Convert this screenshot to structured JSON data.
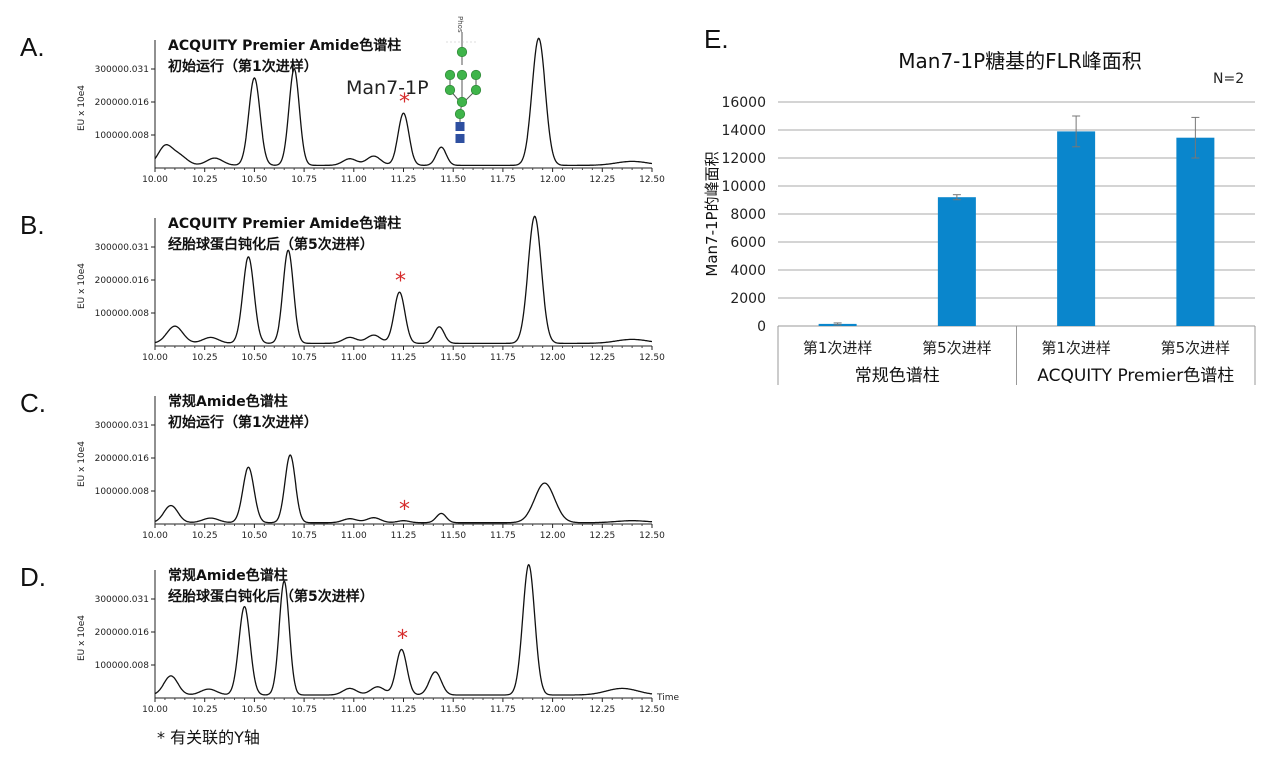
{
  "footnote": "* 有关联的Y轴",
  "chromatograms": {
    "x_axis": {
      "ticks": [
        "10.00",
        "10.25",
        "10.50",
        "10.75",
        "11.00",
        "11.25",
        "11.50",
        "11.75",
        "12.00",
        "12.25",
        "12.50"
      ],
      "time_label": "Time"
    },
    "y_axis": {
      "label": "EU x 10e4",
      "ticks": [
        "100000.008",
        "200000.016",
        "300000.031"
      ]
    },
    "glycan_label": "Man7-1P",
    "glycan_stub_label": "Phos",
    "asterisk": "*",
    "panels": [
      {
        "letter": "A.",
        "title_line1": "ACQUITY Premier Amide色谱柱",
        "title_line2": "初始运行（第1次进样）",
        "show_glycan": true,
        "show_time": false
      },
      {
        "letter": "B.",
        "title_line1": "ACQUITY Premier Amide色谱柱",
        "title_line2": "经胎球蛋白钝化后（第5次进样）",
        "show_glycan": false,
        "show_time": false
      },
      {
        "letter": "C.",
        "title_line1": "常规Amide色谱柱",
        "title_line2": "初始运行（第1次进样）",
        "show_glycan": false,
        "show_time": false
      },
      {
        "letter": "D.",
        "title_line1": "常规Amide色谱柱",
        "title_line2": "经胎球蛋白钝化后（第5次进样）",
        "show_glycan": false,
        "show_time": true
      }
    ]
  },
  "colors": {
    "bar": "#0a86cc",
    "asterisk": "#d62b2b",
    "glycan_green": "#3fb44a",
    "glycan_blue": "#2e4fa0",
    "trace": "#111111",
    "grid": "#aaaaaa"
  },
  "chart_data": [
    {
      "type": "line",
      "panel": "A.",
      "title": "ACQUITY Premier Amide色谱柱 初始运行（第1次进样）",
      "xlabel": "",
      "ylabel": "EU x 10e4",
      "xlim": [
        10.0,
        12.5
      ],
      "ylim": [
        0,
        400000
      ],
      "peaks": [
        {
          "x": 10.05,
          "y": 55000,
          "w": 0.035
        },
        {
          "x": 10.12,
          "y": 30000,
          "w": 0.04
        },
        {
          "x": 10.3,
          "y": 22000,
          "w": 0.04
        },
        {
          "x": 10.5,
          "y": 265000,
          "w": 0.028
        },
        {
          "x": 10.7,
          "y": 292000,
          "w": 0.026
        },
        {
          "x": 10.98,
          "y": 20000,
          "w": 0.035
        },
        {
          "x": 11.1,
          "y": 28000,
          "w": 0.035
        },
        {
          "x": 11.25,
          "y": 158000,
          "w": 0.027
        },
        {
          "x": 11.44,
          "y": 55000,
          "w": 0.025
        },
        {
          "x": 11.93,
          "y": 385000,
          "w": 0.033
        },
        {
          "x": 12.4,
          "y": 12000,
          "w": 0.08
        }
      ],
      "baseline": 8000,
      "marked_peak_x": 11.25
    },
    {
      "type": "line",
      "panel": "B.",
      "title": "ACQUITY Premier Amide色谱柱 经胎球蛋白钝化后（第5次进样）",
      "xlabel": "",
      "ylabel": "EU x 10e4",
      "xlim": [
        10.0,
        12.5
      ],
      "ylim": [
        0,
        400000
      ],
      "peaks": [
        {
          "x": 10.1,
          "y": 52000,
          "w": 0.04
        },
        {
          "x": 10.28,
          "y": 18000,
          "w": 0.04
        },
        {
          "x": 10.47,
          "y": 262000,
          "w": 0.028
        },
        {
          "x": 10.67,
          "y": 282000,
          "w": 0.026
        },
        {
          "x": 10.98,
          "y": 18000,
          "w": 0.035
        },
        {
          "x": 11.1,
          "y": 25000,
          "w": 0.035
        },
        {
          "x": 11.23,
          "y": 155000,
          "w": 0.027
        },
        {
          "x": 11.43,
          "y": 50000,
          "w": 0.025
        },
        {
          "x": 11.91,
          "y": 385000,
          "w": 0.033
        },
        {
          "x": 12.4,
          "y": 12000,
          "w": 0.08
        }
      ],
      "baseline": 8000,
      "marked_peak_x": 11.23
    },
    {
      "type": "line",
      "panel": "C.",
      "title": "常规Amide色谱柱 初始运行（第1次进样）",
      "xlabel": "",
      "ylabel": "EU x 10e4",
      "xlim": [
        10.0,
        12.5
      ],
      "ylim": [
        0,
        400000
      ],
      "peaks": [
        {
          "x": 10.08,
          "y": 52000,
          "w": 0.035
        },
        {
          "x": 10.28,
          "y": 14000,
          "w": 0.04
        },
        {
          "x": 10.47,
          "y": 168000,
          "w": 0.028
        },
        {
          "x": 10.68,
          "y": 205000,
          "w": 0.026
        },
        {
          "x": 10.98,
          "y": 12000,
          "w": 0.035
        },
        {
          "x": 11.1,
          "y": 15000,
          "w": 0.035
        },
        {
          "x": 11.25,
          "y": 6000,
          "w": 0.03
        },
        {
          "x": 11.44,
          "y": 28000,
          "w": 0.025
        },
        {
          "x": 11.96,
          "y": 120000,
          "w": 0.05
        },
        {
          "x": 12.4,
          "y": 6000,
          "w": 0.08
        }
      ],
      "baseline": 4000,
      "marked_peak_x": 11.25
    },
    {
      "type": "line",
      "panel": "D.",
      "title": "常规Amide色谱柱 经胎球蛋白钝化后（第5次进样）",
      "xlabel": "Time",
      "ylabel": "EU x 10e4",
      "xlim": [
        10.0,
        12.5
      ],
      "ylim": [
        0,
        400000
      ],
      "peaks": [
        {
          "x": 10.08,
          "y": 58000,
          "w": 0.035
        },
        {
          "x": 10.27,
          "y": 18000,
          "w": 0.04
        },
        {
          "x": 10.45,
          "y": 268000,
          "w": 0.028
        },
        {
          "x": 10.65,
          "y": 345000,
          "w": 0.025
        },
        {
          "x": 10.98,
          "y": 20000,
          "w": 0.035
        },
        {
          "x": 11.12,
          "y": 25000,
          "w": 0.035
        },
        {
          "x": 11.24,
          "y": 138000,
          "w": 0.027
        },
        {
          "x": 11.41,
          "y": 70000,
          "w": 0.03
        },
        {
          "x": 11.88,
          "y": 395000,
          "w": 0.03
        },
        {
          "x": 12.35,
          "y": 20000,
          "w": 0.08
        }
      ],
      "baseline": 9000,
      "marked_peak_x": 11.24
    },
    {
      "type": "bar",
      "panel": "E.",
      "title": "Man7-1P糖基的FLR峰面积",
      "annotation": "N=2",
      "ylabel": "Man7-1P的峰面积",
      "ylim": [
        0,
        16000
      ],
      "yticks": [
        0,
        2000,
        4000,
        6000,
        8000,
        10000,
        12000,
        14000,
        16000
      ],
      "categories": [
        "第1次进样",
        "第5次进样",
        "第1次进样",
        "第5次进样"
      ],
      "groups": [
        {
          "label": "常规色谱柱",
          "span": [
            0,
            1
          ]
        },
        {
          "label": "ACQUITY Premier色谱柱",
          "span": [
            2,
            3
          ]
        }
      ],
      "values": [
        150,
        9200,
        13900,
        13450
      ],
      "errors": [
        70,
        180,
        1100,
        1450
      ],
      "grid": true,
      "legend": "none"
    }
  ]
}
